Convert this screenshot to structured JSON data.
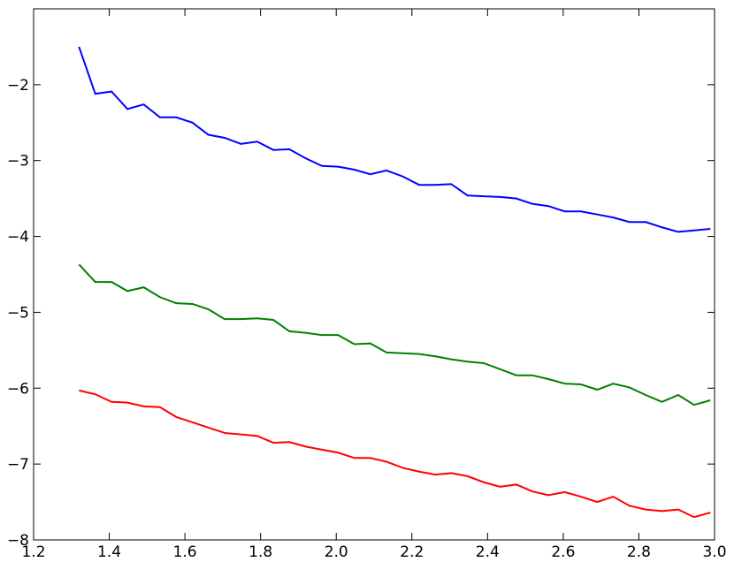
{
  "chart_data": {
    "type": "line",
    "x": [
      1.32,
      1.363,
      1.406,
      1.448,
      1.491,
      1.534,
      1.577,
      1.62,
      1.662,
      1.705,
      1.748,
      1.791,
      1.834,
      1.876,
      1.919,
      1.962,
      2.005,
      2.048,
      2.09,
      2.133,
      2.176,
      2.219,
      2.262,
      2.304,
      2.347,
      2.39,
      2.433,
      2.476,
      2.518,
      2.561,
      2.604,
      2.647,
      2.69,
      2.732,
      2.775,
      2.818,
      2.861,
      2.904,
      2.946,
      2.989
    ],
    "series": [
      {
        "color": "#0000ff",
        "values": [
          -1.5,
          -2.12,
          -2.09,
          -2.32,
          -2.26,
          -2.43,
          -2.43,
          -2.5,
          -2.66,
          -2.7,
          -2.78,
          -2.75,
          -2.86,
          -2.85,
          -2.97,
          -3.07,
          -3.08,
          -3.12,
          -3.18,
          -3.13,
          -3.21,
          -3.32,
          -3.32,
          -3.31,
          -3.46,
          -3.47,
          -3.48,
          -3.5,
          -3.57,
          -3.6,
          -3.67,
          -3.67,
          -3.71,
          -3.75,
          -3.81,
          -3.81,
          -3.88,
          -3.94,
          -3.92,
          -3.9
        ]
      },
      {
        "color": "#008000",
        "values": [
          -4.37,
          -4.6,
          -4.6,
          -4.72,
          -4.67,
          -4.8,
          -4.88,
          -4.89,
          -4.96,
          -5.09,
          -5.09,
          -5.08,
          -5.1,
          -5.25,
          -5.27,
          -5.3,
          -5.3,
          -5.42,
          -5.41,
          -5.53,
          -5.54,
          -5.55,
          -5.58,
          -5.62,
          -5.65,
          -5.67,
          -5.75,
          -5.83,
          -5.83,
          -5.88,
          -5.94,
          -5.95,
          -6.02,
          -5.94,
          -5.99,
          -6.09,
          -6.18,
          -6.09,
          -6.22,
          -6.16
        ]
      },
      {
        "color": "#ff0000",
        "values": [
          -6.03,
          -6.08,
          -6.18,
          -6.19,
          -6.24,
          -6.25,
          -6.38,
          -6.45,
          -6.52,
          -6.59,
          -6.61,
          -6.63,
          -6.72,
          -6.71,
          -6.77,
          -6.81,
          -6.85,
          -6.92,
          -6.92,
          -6.97,
          -7.05,
          -7.1,
          -7.14,
          -7.12,
          -7.16,
          -7.24,
          -7.3,
          -7.27,
          -7.36,
          -7.41,
          -7.37,
          -7.43,
          -7.5,
          -7.43,
          -7.55,
          -7.6,
          -7.62,
          -7.6,
          -7.7,
          -7.64
        ]
      }
    ],
    "xlim": [
      1.2,
      3.0
    ],
    "xticks": [
      1.2,
      1.4,
      1.6,
      1.8,
      {
        "value": 2.0,
        "label": "2.0"
      },
      2.2,
      2.4,
      2.6,
      2.8,
      {
        "value": 3.0,
        "label": "3.0"
      }
    ],
    "ylim": [
      -8,
      -1
    ],
    "yticks": [
      {
        "value": -8,
        "label": "−8"
      },
      {
        "value": -7,
        "label": "−7"
      },
      {
        "value": -6,
        "label": "−6"
      },
      {
        "value": -5,
        "label": "−5"
      },
      {
        "value": -4,
        "label": "−4"
      },
      {
        "value": -3,
        "label": "−3"
      },
      {
        "value": -2,
        "label": "−2"
      }
    ],
    "grid": false
  }
}
